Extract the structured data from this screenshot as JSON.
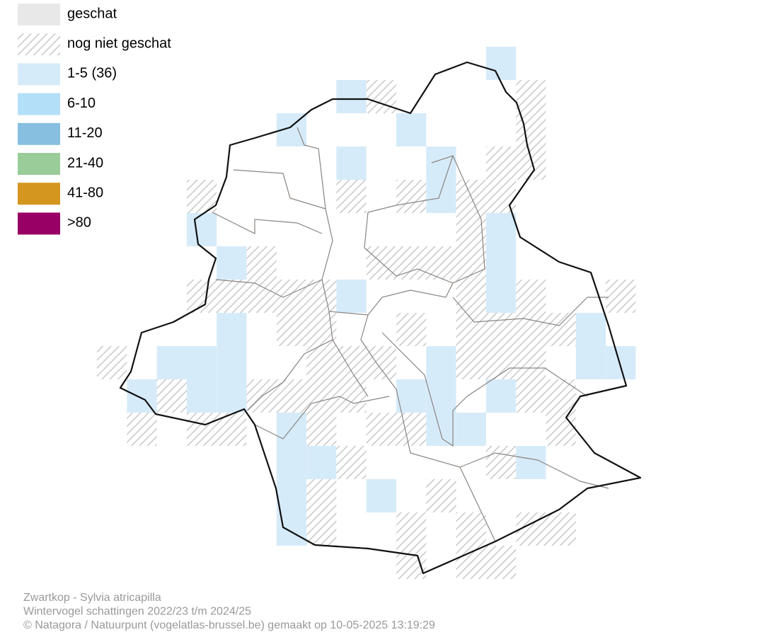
{
  "legend": {
    "items": [
      {
        "label": "geschat",
        "color": "#e8e8e8"
      },
      {
        "label": "nog niet geschat"
      },
      {
        "label": "1-5 (36)",
        "color": "#d6ebf9"
      },
      {
        "label": "6-10",
        "color": "#b3e0f8"
      },
      {
        "label": "11-20",
        "color": "#86bfe0"
      },
      {
        "label": "21-40",
        "color": "#99cc99"
      },
      {
        "label": "41-80",
        "color": "#d4961e"
      },
      {
        "label": ">80",
        "color": "#990066"
      }
    ]
  },
  "footer": {
    "lines": [
      "Zwartkop - Sylvia atricapilla",
      "Wintervogel schattingen 2022/23 t/m 2024/25",
      "© Natagora / Natuurpunt (vogelatlas-brussel.be) gemaakt op 10-05-2025 13:19:29"
    ]
  }
}
